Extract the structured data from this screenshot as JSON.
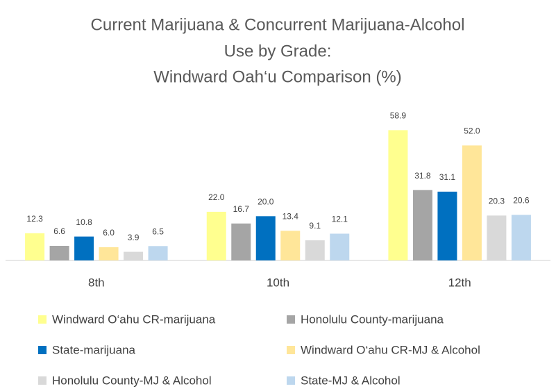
{
  "chart_data": {
    "type": "bar",
    "title": [
      "Current Marijuana & Concurrent Marijuana-Alcohol",
      "Use by Grade:",
      "Windward Oah‘u  Comparison (%)"
    ],
    "categories": [
      "8th",
      "10th",
      "12th"
    ],
    "ylim": [
      0,
      65
    ],
    "series": [
      {
        "name": "Windward O‘ahu CR-marijuana",
        "color": "#ffff8f",
        "values": [
          12.3,
          22.0,
          58.9
        ],
        "value_labels": [
          "12.3",
          "22.0",
          "58.9"
        ]
      },
      {
        "name": "Honolulu County-marijuana",
        "color": "#a5a5a5",
        "values": [
          6.6,
          16.7,
          31.8
        ],
        "value_labels": [
          "6.6",
          "16.7",
          "31.8"
        ]
      },
      {
        "name": "State-marijuana",
        "color": "#0070c0",
        "values": [
          10.8,
          20.0,
          31.1
        ],
        "value_labels": [
          "10.8",
          "20.0",
          "31.1"
        ]
      },
      {
        "name": "Windward O‘ahu CR-MJ & Alcohol",
        "color": "#ffe699",
        "values": [
          6.0,
          13.4,
          52.0
        ],
        "value_labels": [
          "6.0",
          "13.4",
          "52.0"
        ]
      },
      {
        "name": "Honolulu County-MJ & Alcohol",
        "color": "#d9d9d9",
        "values": [
          3.9,
          9.1,
          20.3
        ],
        "value_labels": [
          "3.9",
          "9.1",
          "20.3"
        ]
      },
      {
        "name": "State-MJ & Alcohol",
        "color": "#bdd7ee",
        "values": [
          6.5,
          12.1,
          20.6
        ],
        "value_labels": [
          "6.5",
          "12.1",
          "20.6"
        ]
      }
    ]
  }
}
